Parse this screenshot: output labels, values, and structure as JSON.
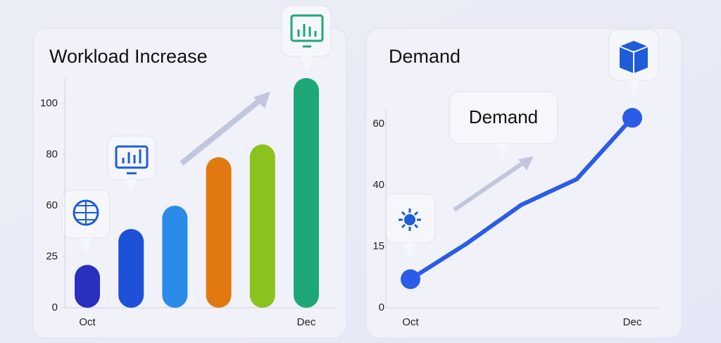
{
  "chart_data": [
    {
      "type": "bar",
      "title": "Workload Increase",
      "categories": [
        "Oct",
        null,
        null,
        null,
        null,
        "Dec"
      ],
      "values": [
        21,
        44,
        60,
        79,
        84,
        110
      ],
      "colors": [
        "#2a2fc0",
        "#1e50d8",
        "#2a8ce8",
        "#e07a10",
        "#8cc21e",
        "#1ea878"
      ],
      "ylim": [
        0,
        110
      ],
      "yticks": [
        0,
        25,
        60,
        80,
        100
      ]
    },
    {
      "type": "line",
      "title": "Demand",
      "annotation": "Demand",
      "categories": [
        "Oct",
        null,
        null,
        null,
        "Dec"
      ],
      "values": [
        7,
        16,
        32,
        42,
        62
      ],
      "color": "#2a5ce8",
      "ylim": [
        0,
        65
      ],
      "yticks": [
        0,
        15,
        40,
        60
      ]
    }
  ]
}
